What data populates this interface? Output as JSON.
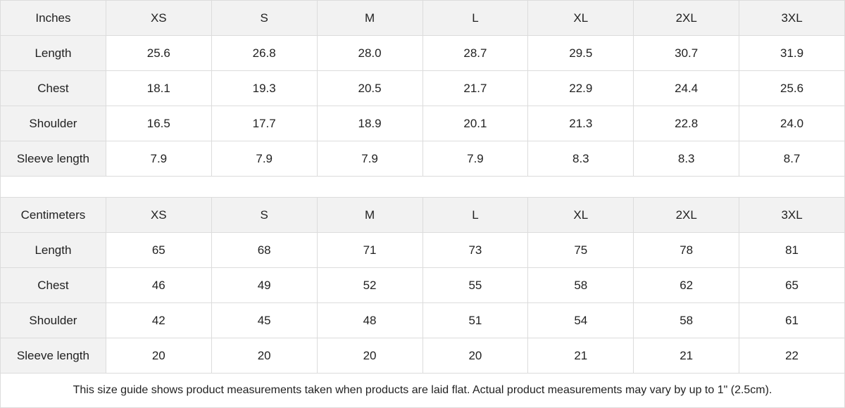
{
  "tables": [
    {
      "unit_label": "Inches",
      "sizes": [
        "XS",
        "S",
        "M",
        "L",
        "XL",
        "2XL",
        "3XL"
      ],
      "rows": [
        {
          "label": "Length",
          "values": [
            "25.6",
            "26.8",
            "28.0",
            "28.7",
            "29.5",
            "30.7",
            "31.9"
          ]
        },
        {
          "label": "Chest",
          "values": [
            "18.1",
            "19.3",
            "20.5",
            "21.7",
            "22.9",
            "24.4",
            "25.6"
          ]
        },
        {
          "label": "Shoulder",
          "values": [
            "16.5",
            "17.7",
            "18.9",
            "20.1",
            "21.3",
            "22.8",
            "24.0"
          ]
        },
        {
          "label": "Sleeve length",
          "values": [
            "7.9",
            "7.9",
            "7.9",
            "7.9",
            "8.3",
            "8.3",
            "8.7"
          ]
        }
      ]
    },
    {
      "unit_label": "Centimeters",
      "sizes": [
        "XS",
        "S",
        "M",
        "L",
        "XL",
        "2XL",
        "3XL"
      ],
      "rows": [
        {
          "label": "Length",
          "values": [
            "65",
            "68",
            "71",
            "73",
            "75",
            "78",
            "81"
          ]
        },
        {
          "label": "Chest",
          "values": [
            "46",
            "49",
            "52",
            "55",
            "58",
            "62",
            "65"
          ]
        },
        {
          "label": "Shoulder",
          "values": [
            "42",
            "45",
            "48",
            "51",
            "54",
            "58",
            "61"
          ]
        },
        {
          "label": "Sleeve length",
          "values": [
            "20",
            "20",
            "20",
            "20",
            "21",
            "21",
            "22"
          ]
        }
      ]
    }
  ],
  "footer_note": "This size guide shows product measurements taken when products are laid flat.  Actual product measurements may vary by up to 1\" (2.5cm).",
  "colors": {
    "header_bg": "#f2f2f2",
    "border": "#dcdcdc",
    "text": "#222222"
  }
}
